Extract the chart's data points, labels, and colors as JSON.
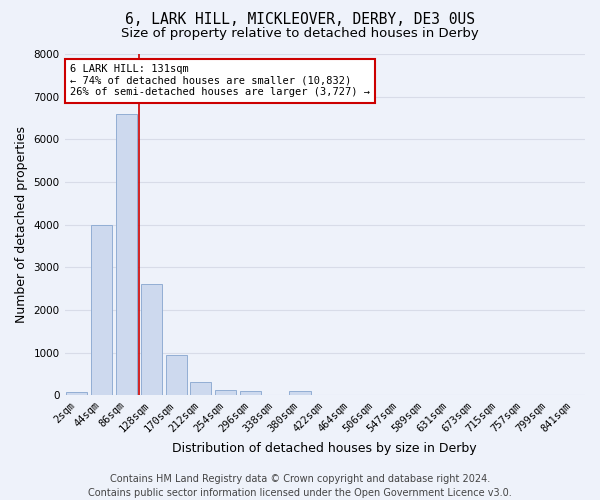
{
  "title_line1": "6, LARK HILL, MICKLEOVER, DERBY, DE3 0US",
  "title_line2": "Size of property relative to detached houses in Derby",
  "xlabel": "Distribution of detached houses by size in Derby",
  "ylabel": "Number of detached properties",
  "bar_labels": [
    "2sqm",
    "44sqm",
    "86sqm",
    "128sqm",
    "170sqm",
    "212sqm",
    "254sqm",
    "296sqm",
    "338sqm",
    "380sqm",
    "422sqm",
    "464sqm",
    "506sqm",
    "547sqm",
    "589sqm",
    "631sqm",
    "673sqm",
    "715sqm",
    "757sqm",
    "799sqm",
    "841sqm"
  ],
  "bar_values": [
    70,
    4000,
    6600,
    2600,
    950,
    320,
    130,
    90,
    0,
    90,
    0,
    0,
    0,
    0,
    0,
    0,
    0,
    0,
    0,
    0,
    0
  ],
  "bar_color": "#cdd9ee",
  "bar_edge_color": "#92aed4",
  "vline_x_index": 2.5,
  "vline_color": "#cc0000",
  "ylim": [
    0,
    8000
  ],
  "yticks": [
    0,
    1000,
    2000,
    3000,
    4000,
    5000,
    6000,
    7000,
    8000
  ],
  "annotation_text": "6 LARK HILL: 131sqm\n← 74% of detached houses are smaller (10,832)\n26% of semi-detached houses are larger (3,727) →",
  "annotation_box_color": "#ffffff",
  "annotation_box_edge_color": "#cc0000",
  "footer_text": "Contains HM Land Registry data © Crown copyright and database right 2024.\nContains public sector information licensed under the Open Government Licence v3.0.",
  "background_color": "#eef2fa",
  "grid_color": "#d8dce8",
  "title_fontsize": 10.5,
  "subtitle_fontsize": 9.5,
  "axis_label_fontsize": 9,
  "tick_fontsize": 7.5,
  "annotation_fontsize": 7.5,
  "footer_fontsize": 7
}
